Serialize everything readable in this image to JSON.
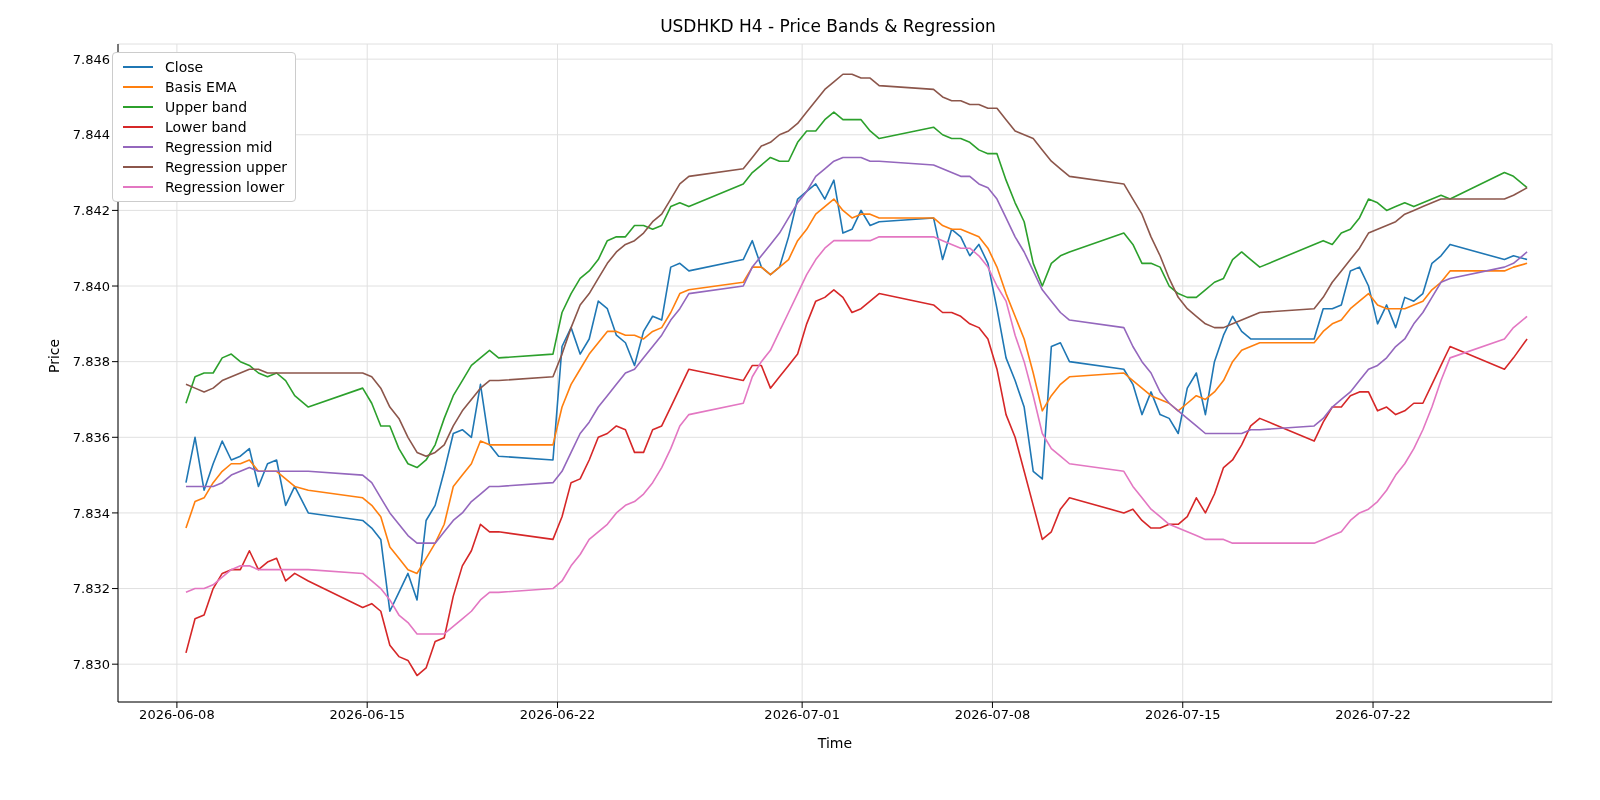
{
  "chart_data": {
    "type": "line",
    "title": "USDHKD H4 - Price Bands & Regression",
    "xlabel": "Time",
    "ylabel": "Price",
    "x": [
      "2026-06-08T08:00",
      "2026-06-08T16:00",
      "2026-06-09T00:00",
      "2026-06-09T08:00",
      "2026-06-09T16:00",
      "2026-06-10T00:00",
      "2026-06-10T08:00",
      "2026-06-10T16:00",
      "2026-06-11T00:00",
      "2026-06-11T08:00",
      "2026-06-11T16:00",
      "2026-06-12T00:00",
      "2026-06-12T08:00",
      "2026-06-12T20:00",
      "2026-06-14T20:00",
      "2026-06-15T04:00",
      "2026-06-15T12:00",
      "2026-06-15T20:00",
      "2026-06-16T04:00",
      "2026-06-16T12:00",
      "2026-06-16T20:00",
      "2026-06-17T04:00",
      "2026-06-17T12:00",
      "2026-06-17T20:00",
      "2026-06-18T04:00",
      "2026-06-18T12:00",
      "2026-06-18T20:00",
      "2026-06-19T04:00",
      "2026-06-19T12:00",
      "2026-06-19T20:00",
      "2026-06-21T20:00",
      "2026-06-22T04:00",
      "2026-06-22T12:00",
      "2026-06-22T20:00",
      "2026-06-23T04:00",
      "2026-06-23T12:00",
      "2026-06-23T20:00",
      "2026-06-24T04:00",
      "2026-06-24T12:00",
      "2026-06-24T20:00",
      "2026-06-25T04:00",
      "2026-06-25T12:00",
      "2026-06-25T20:00",
      "2026-06-26T04:00",
      "2026-06-26T12:00",
      "2026-06-26T20:00",
      "2026-06-28T20:00",
      "2026-06-29T04:00",
      "2026-06-29T12:00",
      "2026-06-29T20:00",
      "2026-06-30T04:00",
      "2026-06-30T12:00",
      "2026-06-30T20:00",
      "2026-07-01T04:00",
      "2026-07-01T12:00",
      "2026-07-01T20:00",
      "2026-07-02T04:00",
      "2026-07-02T12:00",
      "2026-07-02T20:00",
      "2026-07-03T04:00",
      "2026-07-03T12:00",
      "2026-07-03T20:00",
      "2026-07-05T20:00",
      "2026-07-06T04:00",
      "2026-07-06T12:00",
      "2026-07-06T20:00",
      "2026-07-07T04:00",
      "2026-07-07T12:00",
      "2026-07-07T20:00",
      "2026-07-08T04:00",
      "2026-07-08T12:00",
      "2026-07-08T20:00",
      "2026-07-09T04:00",
      "2026-07-09T12:00",
      "2026-07-09T20:00",
      "2026-07-10T04:00",
      "2026-07-10T12:00",
      "2026-07-10T20:00",
      "2026-07-12T20:00",
      "2026-07-13T04:00",
      "2026-07-13T12:00",
      "2026-07-13T20:00",
      "2026-07-14T04:00",
      "2026-07-14T12:00",
      "2026-07-14T20:00",
      "2026-07-15T04:00",
      "2026-07-15T12:00",
      "2026-07-15T20:00",
      "2026-07-16T04:00",
      "2026-07-16T12:00",
      "2026-07-16T20:00",
      "2026-07-17T04:00",
      "2026-07-17T12:00",
      "2026-07-17T20:00",
      "2026-07-19T20:00",
      "2026-07-20T04:00",
      "2026-07-20T12:00",
      "2026-07-20T20:00",
      "2026-07-21T04:00",
      "2026-07-21T12:00",
      "2026-07-21T20:00",
      "2026-07-22T04:00",
      "2026-07-22T12:00",
      "2026-07-22T20:00",
      "2026-07-23T04:00",
      "2026-07-23T12:00",
      "2026-07-23T20:00",
      "2026-07-24T04:00",
      "2026-07-24T12:00",
      "2026-07-24T20:00",
      "2026-07-26T20:00",
      "2026-07-27T04:00",
      "2026-07-27T16:00"
    ],
    "series": [
      {
        "name": "Close",
        "color": "#1f77b4",
        "values": [
          7.8348,
          7.836,
          7.8346,
          7.8353,
          7.8359,
          7.8354,
          7.8355,
          7.8357,
          7.8347,
          7.8353,
          7.8354,
          7.8342,
          7.8347,
          7.834,
          7.8338,
          7.8336,
          7.8333,
          7.8314,
          7.8319,
          7.8324,
          7.8317,
          7.8338,
          7.8342,
          7.8351,
          7.8361,
          7.8362,
          7.836,
          7.8374,
          7.8358,
          7.8355,
          7.8354,
          7.8384,
          7.8389,
          7.8382,
          7.8386,
          7.8396,
          7.8394,
          7.8387,
          7.8385,
          7.8379,
          7.8388,
          7.8392,
          7.8391,
          7.8405,
          7.8406,
          7.8404,
          7.8407,
          7.8412,
          7.8405,
          7.8403,
          7.8405,
          7.8413,
          7.8423,
          7.8425,
          7.8427,
          7.8423,
          7.8428,
          7.8414,
          7.8415,
          7.842,
          7.8416,
          7.8417,
          7.8418,
          7.8407,
          7.8415,
          7.8413,
          7.8408,
          7.8411,
          7.8406,
          7.8394,
          7.8381,
          7.8375,
          7.8368,
          7.8351,
          7.8349,
          7.8384,
          7.8385,
          7.838,
          7.8378,
          7.8374,
          7.8366,
          7.8372,
          7.8366,
          7.8365,
          7.8361,
          7.8373,
          7.8377,
          7.8366,
          7.838,
          7.8387,
          7.8392,
          7.8388,
          7.8386,
          7.8386,
          7.8386,
          7.8394,
          7.8394,
          7.8395,
          7.8404,
          7.8405,
          7.84,
          7.839,
          7.8395,
          7.8389,
          7.8397,
          7.8396,
          7.8398,
          7.8406,
          7.8408,
          7.8411,
          7.8407,
          7.8408,
          7.8407
        ]
      },
      {
        "name": "Basis EMA",
        "color": "#ff7f0e",
        "values": [
          7.8336,
          7.8343,
          7.8344,
          7.8348,
          7.8351,
          7.8353,
          7.8353,
          7.8354,
          7.8351,
          7.8351,
          7.8351,
          7.8349,
          7.8347,
          7.8346,
          7.8344,
          7.8342,
          7.8339,
          7.8331,
          7.8328,
          7.8325,
          7.8324,
          7.8328,
          7.8332,
          7.8337,
          7.8347,
          7.835,
          7.8353,
          7.8359,
          7.8358,
          7.8358,
          7.8358,
          7.8368,
          7.8374,
          7.8378,
          7.8382,
          7.8385,
          7.8388,
          7.8388,
          7.8387,
          7.8387,
          7.8386,
          7.8388,
          7.8389,
          7.8393,
          7.8398,
          7.8399,
          7.8401,
          7.8405,
          7.8405,
          7.8403,
          7.8405,
          7.8407,
          7.8412,
          7.8415,
          7.8419,
          7.8421,
          7.8423,
          7.842,
          7.8418,
          7.8419,
          7.8419,
          7.8418,
          7.8418,
          7.8416,
          7.8415,
          7.8415,
          7.8414,
          7.8413,
          7.841,
          7.8405,
          7.8398,
          7.8392,
          7.8386,
          7.8377,
          7.8367,
          7.8371,
          7.8374,
          7.8376,
          7.8377,
          7.8375,
          7.8373,
          7.8371,
          7.837,
          7.8369,
          7.8367,
          7.8369,
          7.8371,
          7.837,
          7.8372,
          7.8375,
          7.838,
          7.8383,
          7.8384,
          7.8385,
          7.8385,
          7.8388,
          7.839,
          7.8391,
          7.8394,
          7.8396,
          7.8398,
          7.8395,
          7.8394,
          7.8394,
          7.8394,
          7.8395,
          7.8396,
          7.8399,
          7.8401,
          7.8404,
          7.8404,
          7.8405,
          7.8406
        ]
      },
      {
        "name": "Upper band",
        "color": "#2ca02c",
        "values": [
          7.8369,
          7.8376,
          7.8377,
          7.8377,
          7.8381,
          7.8382,
          7.838,
          7.8379,
          7.8377,
          7.8376,
          7.8377,
          7.8375,
          7.8371,
          7.8368,
          7.8373,
          7.8369,
          7.8363,
          7.8363,
          7.8357,
          7.8353,
          7.8352,
          7.8354,
          7.8358,
          7.8365,
          7.8371,
          7.8375,
          7.8379,
          7.8381,
          7.8383,
          7.8381,
          7.8382,
          7.8393,
          7.8398,
          7.8402,
          7.8404,
          7.8407,
          7.8412,
          7.8413,
          7.8413,
          7.8416,
          7.8416,
          7.8415,
          7.8416,
          7.8421,
          7.8422,
          7.8421,
          7.8427,
          7.843,
          7.8432,
          7.8434,
          7.8433,
          7.8433,
          7.8438,
          7.8441,
          7.8441,
          7.8444,
          7.8446,
          7.8444,
          7.8444,
          7.8444,
          7.8441,
          7.8439,
          7.8442,
          7.844,
          7.8439,
          7.8439,
          7.8438,
          7.8436,
          7.8435,
          7.8435,
          7.8428,
          7.8422,
          7.8417,
          7.8406,
          7.84,
          7.8406,
          7.8408,
          7.8409,
          7.8414,
          7.8411,
          7.8406,
          7.8406,
          7.8405,
          7.84,
          7.8398,
          7.8397,
          7.8397,
          7.8399,
          7.8401,
          7.8402,
          7.8407,
          7.8409,
          7.8407,
          7.8405,
          7.8411,
          7.8412,
          7.8411,
          7.8414,
          7.8415,
          7.8418,
          7.8423,
          7.8422,
          7.842,
          7.8421,
          7.8422,
          7.8421,
          7.8422,
          7.8423,
          7.8424,
          7.8423,
          7.843,
          7.8429,
          7.8426
        ]
      },
      {
        "name": "Lower band",
        "color": "#d62728",
        "values": [
          7.8303,
          7.8312,
          7.8313,
          7.832,
          7.8324,
          7.8325,
          7.8325,
          7.833,
          7.8325,
          7.8327,
          7.8328,
          7.8322,
          7.8324,
          7.8322,
          7.8315,
          7.8316,
          7.8314,
          7.8305,
          7.8302,
          7.8301,
          7.8297,
          7.8299,
          7.8306,
          7.8307,
          7.8318,
          7.8326,
          7.833,
          7.8337,
          7.8335,
          7.8335,
          7.8333,
          7.8339,
          7.8348,
          7.8349,
          7.8354,
          7.836,
          7.8361,
          7.8363,
          7.8362,
          7.8356,
          7.8356,
          7.8362,
          7.8363,
          7.8368,
          7.8373,
          7.8378,
          7.8375,
          7.8379,
          7.8379,
          7.8373,
          7.8376,
          7.8379,
          7.8382,
          7.839,
          7.8396,
          7.8397,
          7.8399,
          7.8397,
          7.8393,
          7.8394,
          7.8396,
          7.8398,
          7.8395,
          7.8393,
          7.8393,
          7.8392,
          7.839,
          7.8389,
          7.8386,
          7.8378,
          7.8366,
          7.836,
          7.8351,
          7.8342,
          7.8333,
          7.8335,
          7.8341,
          7.8344,
          7.834,
          7.8341,
          7.8338,
          7.8336,
          7.8336,
          7.8337,
          7.8337,
          7.8339,
          7.8344,
          7.834,
          7.8345,
          7.8352,
          7.8354,
          7.8358,
          7.8363,
          7.8365,
          7.8359,
          7.8364,
          7.8368,
          7.8368,
          7.8371,
          7.8372,
          7.8372,
          7.8367,
          7.8368,
          7.8366,
          7.8367,
          7.8369,
          7.8369,
          7.8374,
          7.8379,
          7.8384,
          7.8378,
          7.8381,
          7.8386
        ]
      },
      {
        "name": "Regression mid",
        "color": "#9467bd",
        "values": [
          7.8347,
          7.8347,
          7.8347,
          7.8347,
          7.8348,
          7.835,
          7.8351,
          7.8352,
          7.8351,
          7.8351,
          7.8351,
          7.8351,
          7.8351,
          7.8351,
          7.835,
          7.8348,
          7.8344,
          7.834,
          7.8337,
          7.8334,
          7.8332,
          7.8332,
          7.8332,
          7.8335,
          7.8338,
          7.834,
          7.8343,
          7.8345,
          7.8347,
          7.8347,
          7.8348,
          7.8351,
          7.8356,
          7.8361,
          7.8364,
          7.8368,
          7.8371,
          7.8374,
          7.8377,
          7.8378,
          7.8381,
          7.8384,
          7.8387,
          7.8391,
          7.8394,
          7.8398,
          7.84,
          7.8405,
          7.8408,
          7.8411,
          7.8414,
          7.8418,
          7.8422,
          7.8425,
          7.8429,
          7.8431,
          7.8433,
          7.8434,
          7.8434,
          7.8434,
          7.8433,
          7.8433,
          7.8432,
          7.8431,
          7.843,
          7.8429,
          7.8429,
          7.8427,
          7.8426,
          7.8423,
          7.8418,
          7.8413,
          7.8409,
          7.8404,
          7.8399,
          7.8396,
          7.8393,
          7.8391,
          7.8389,
          7.8384,
          7.838,
          7.8377,
          7.8372,
          7.8369,
          7.8367,
          7.8365,
          7.8363,
          7.8361,
          7.8361,
          7.8361,
          7.8361,
          7.8361,
          7.8362,
          7.8362,
          7.8363,
          7.8365,
          7.8368,
          7.837,
          7.8372,
          7.8375,
          7.8378,
          7.8379,
          7.8381,
          7.8384,
          7.8386,
          7.839,
          7.8393,
          7.8397,
          7.8401,
          7.8402,
          7.8405,
          7.8406,
          7.8409
        ]
      },
      {
        "name": "Regression upper",
        "color": "#8c564b",
        "values": [
          7.8374,
          7.8373,
          7.8372,
          7.8373,
          7.8375,
          7.8376,
          7.8377,
          7.8378,
          7.8378,
          7.8377,
          7.8377,
          7.8377,
          7.8377,
          7.8377,
          7.8377,
          7.8376,
          7.8373,
          7.8368,
          7.8365,
          7.836,
          7.8356,
          7.8355,
          7.8356,
          7.8358,
          7.8363,
          7.8367,
          7.837,
          7.8373,
          7.8375,
          7.8375,
          7.8376,
          7.8382,
          7.8389,
          7.8395,
          7.8398,
          7.8402,
          7.8406,
          7.8409,
          7.8411,
          7.8412,
          7.8414,
          7.8417,
          7.8419,
          7.8423,
          7.8427,
          7.8429,
          7.8431,
          7.8434,
          7.8437,
          7.8438,
          7.844,
          7.8441,
          7.8443,
          7.8446,
          7.8449,
          7.8452,
          7.8454,
          7.8456,
          7.8456,
          7.8455,
          7.8455,
          7.8453,
          7.8452,
          7.845,
          7.8449,
          7.8449,
          7.8448,
          7.8448,
          7.8447,
          7.8447,
          7.8444,
          7.8441,
          7.844,
          7.8439,
          7.8436,
          7.8433,
          7.8431,
          7.8429,
          7.8427,
          7.8423,
          7.8419,
          7.8413,
          7.8408,
          7.8402,
          7.8397,
          7.8394,
          7.8392,
          7.839,
          7.8389,
          7.8389,
          7.839,
          7.8391,
          7.8392,
          7.8393,
          7.8394,
          7.8397,
          7.8401,
          7.8404,
          7.8407,
          7.841,
          7.8414,
          7.8415,
          7.8416,
          7.8417,
          7.8419,
          7.842,
          7.8421,
          7.8422,
          7.8423,
          7.8423,
          7.8423,
          7.8424,
          7.8426
        ]
      },
      {
        "name": "Regression lower",
        "color": "#e377c2",
        "values": [
          7.8319,
          7.832,
          7.832,
          7.8321,
          7.8323,
          7.8325,
          7.8326,
          7.8326,
          7.8325,
          7.8325,
          7.8325,
          7.8325,
          7.8325,
          7.8325,
          7.8324,
          7.8322,
          7.832,
          7.8317,
          7.8313,
          7.8311,
          7.8308,
          7.8308,
          7.8308,
          7.8308,
          7.831,
          7.8312,
          7.8314,
          7.8317,
          7.8319,
          7.8319,
          7.832,
          7.8322,
          7.8326,
          7.8329,
          7.8333,
          7.8335,
          7.8337,
          7.834,
          7.8342,
          7.8343,
          7.8345,
          7.8348,
          7.8352,
          7.8357,
          7.8363,
          7.8366,
          7.8369,
          7.8376,
          7.838,
          7.8383,
          7.8388,
          7.8393,
          7.8398,
          7.8403,
          7.8407,
          7.841,
          7.8412,
          7.8412,
          7.8412,
          7.8412,
          7.8412,
          7.8413,
          7.8413,
          7.8412,
          7.8411,
          7.841,
          7.841,
          7.8408,
          7.8405,
          7.84,
          7.8396,
          7.8387,
          7.838,
          7.8371,
          7.8361,
          7.8357,
          7.8355,
          7.8353,
          7.8351,
          7.8347,
          7.8344,
          7.8341,
          7.8339,
          7.8337,
          7.8336,
          7.8335,
          7.8334,
          7.8333,
          7.8333,
          7.8333,
          7.8332,
          7.8332,
          7.8332,
          7.8332,
          7.8332,
          7.8333,
          7.8334,
          7.8335,
          7.8338,
          7.834,
          7.8341,
          7.8343,
          7.8346,
          7.835,
          7.8353,
          7.8357,
          7.8362,
          7.8368,
          7.8375,
          7.8381,
          7.8386,
          7.8389,
          7.8392
        ]
      }
    ],
    "xlim": [
      "2026-06-05T20:00",
      "2026-07-28T14:00"
    ],
    "xticks": [
      "2026-06-08",
      "2026-06-15",
      "2026-06-22",
      "2026-07-01",
      "2026-07-08",
      "2026-07-15",
      "2026-07-22"
    ],
    "ylim": [
      7.829,
      7.8464
    ],
    "yticks": [
      {
        "value": 7.83,
        "label": "7.830"
      },
      {
        "value": 7.832,
        "label": "7.832"
      },
      {
        "value": 7.834,
        "label": "7.834"
      },
      {
        "value": 7.836,
        "label": "7.836"
      },
      {
        "value": 7.838,
        "label": "7.838"
      },
      {
        "value": 7.84,
        "label": "7.840"
      },
      {
        "value": 7.842,
        "label": "7.842"
      },
      {
        "value": 7.844,
        "label": "7.844"
      },
      {
        "value": 7.846,
        "label": "7.846"
      }
    ],
    "grid": true,
    "legend": "top left",
    "line_style": "solid"
  }
}
